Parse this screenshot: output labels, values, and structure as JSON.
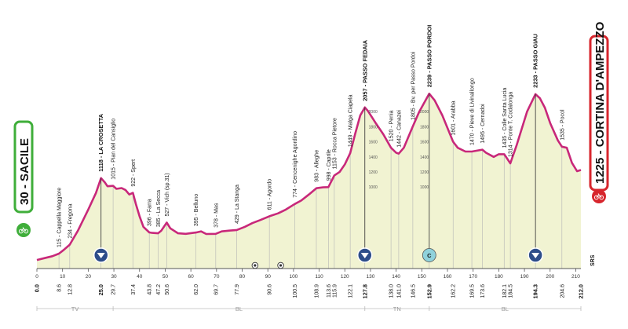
{
  "colors": {
    "profile_fill": "#f1f3d2",
    "profile_line": "#c8287a",
    "start_border": "#3fae3a",
    "finish_border": "#d7262d",
    "marker_kom": "#2d4d8a",
    "marker_sprint": "#8fd2dc",
    "grid": "#b5b5b5"
  },
  "start": {
    "altitude": "30",
    "name": "SACILE"
  },
  "finish": {
    "altitude": "1225",
    "name": "CORTINA D'AMPEZZO"
  },
  "chart_data": {
    "type": "area",
    "title": "",
    "xlabel": "",
    "ylabel": "",
    "xlim": [
      0,
      212
    ],
    "ylim": [
      0,
      3000
    ],
    "profile": [
      [
        0,
        30
      ],
      [
        3,
        55
      ],
      [
        6,
        80
      ],
      [
        8.6,
        115
      ],
      [
        10.5,
        165
      ],
      [
        12.8,
        234
      ],
      [
        16,
        420
      ],
      [
        20,
        700
      ],
      [
        23,
        920
      ],
      [
        25,
        1118
      ],
      [
        26.5,
        1060
      ],
      [
        27.5,
        1010
      ],
      [
        29.7,
        1015
      ],
      [
        31,
        975
      ],
      [
        33,
        985
      ],
      [
        34.5,
        960
      ],
      [
        36,
        900
      ],
      [
        37.4,
        922
      ],
      [
        38.5,
        780
      ],
      [
        40,
        610
      ],
      [
        41.5,
        470
      ],
      [
        43.8,
        396
      ],
      [
        45,
        390
      ],
      [
        47.2,
        385
      ],
      [
        48.5,
        420
      ],
      [
        50.6,
        527
      ],
      [
        52,
        450
      ],
      [
        55,
        385
      ],
      [
        58,
        378
      ],
      [
        62,
        395
      ],
      [
        64,
        410
      ],
      [
        66,
        375
      ],
      [
        69.7,
        378
      ],
      [
        72,
        410
      ],
      [
        75,
        420
      ],
      [
        77.9,
        429
      ],
      [
        81,
        470
      ],
      [
        84,
        520
      ],
      [
        87,
        560
      ],
      [
        90.6,
        611
      ],
      [
        94,
        650
      ],
      [
        97,
        700
      ],
      [
        100.5,
        774
      ],
      [
        103,
        820
      ],
      [
        106,
        900
      ],
      [
        108.9,
        983
      ],
      [
        111.5,
        995
      ],
      [
        113.6,
        998
      ],
      [
        115.9,
        1153
      ],
      [
        118,
        1200
      ],
      [
        120,
        1300
      ],
      [
        122.1,
        1449
      ],
      [
        124,
        1700
      ],
      [
        126,
        1950
      ],
      [
        127.8,
        2057
      ],
      [
        129,
        2010
      ],
      [
        132,
        1850
      ],
      [
        135,
        1700
      ],
      [
        138,
        1520
      ],
      [
        140,
        1455
      ],
      [
        141,
        1442
      ],
      [
        143,
        1520
      ],
      [
        146.5,
        1805
      ],
      [
        149,
        2000
      ],
      [
        152.9,
        2239
      ],
      [
        155,
        2150
      ],
      [
        158,
        1950
      ],
      [
        162.2,
        1601
      ],
      [
        164,
        1520
      ],
      [
        167,
        1470
      ],
      [
        169.5,
        1470
      ],
      [
        171,
        1480
      ],
      [
        173.6,
        1495
      ],
      [
        175,
        1455
      ],
      [
        178,
        1400
      ],
      [
        180,
        1435
      ],
      [
        182.1,
        1435
      ],
      [
        184.5,
        1314
      ],
      [
        187,
        1560
      ],
      [
        191,
        2000
      ],
      [
        194.3,
        2233
      ],
      [
        196,
        2180
      ],
      [
        198,
        2050
      ],
      [
        200,
        1850
      ],
      [
        203,
        1620
      ],
      [
        204.6,
        1535
      ],
      [
        206.5,
        1520
      ],
      [
        208.5,
        1320
      ],
      [
        210.5,
        1210
      ],
      [
        212,
        1225
      ]
    ],
    "waypoints": [
      {
        "km": 8.6,
        "alt": 115,
        "label": "115 - Cappella Maggiore",
        "bold": false
      },
      {
        "km": 12.8,
        "alt": 234,
        "label": "234 - Fregona",
        "bold": false
      },
      {
        "km": 25.0,
        "alt": 1118,
        "label": "1118 - LA CROSETTA",
        "bold": true
      },
      {
        "km": 29.7,
        "alt": 1015,
        "label": "1015 - Pian del Cansiglio",
        "bold": false
      },
      {
        "km": 37.4,
        "alt": 922,
        "label": "922 - Spert",
        "bold": false
      },
      {
        "km": 43.8,
        "alt": 396,
        "label": "396 - Farra",
        "bold": false
      },
      {
        "km": 47.2,
        "alt": 385,
        "label": "385 - La Secca",
        "bold": false
      },
      {
        "km": 50.6,
        "alt": 527,
        "label": "527 - Vich (sp.31)",
        "bold": false
      },
      {
        "km": 62.0,
        "alt": 395,
        "label": "395 - Belluno",
        "bold": false
      },
      {
        "km": 69.7,
        "alt": 378,
        "label": "378 - Mas",
        "bold": false
      },
      {
        "km": 77.9,
        "alt": 429,
        "label": "429 - La Stanga",
        "bold": false
      },
      {
        "km": 90.6,
        "alt": 611,
        "label": "611 - Agordo",
        "bold": false
      },
      {
        "km": 100.5,
        "alt": 774,
        "label": "774 - Cencenighe Agordino",
        "bold": false
      },
      {
        "km": 108.9,
        "alt": 983,
        "label": "983 - Alleghe",
        "bold": false
      },
      {
        "km": 113.6,
        "alt": 998,
        "label": "998 - Caprile",
        "bold": false
      },
      {
        "km": 115.9,
        "alt": 1153,
        "label": "1153 - Rocca Pietore",
        "bold": false
      },
      {
        "km": 122.1,
        "alt": 1449,
        "label": "1449 - Malga Ciapela",
        "bold": false
      },
      {
        "km": 127.8,
        "alt": 2057,
        "label": "2057 - PASSO FEDAIA",
        "bold": true
      },
      {
        "km": 138.0,
        "alt": 1520,
        "label": "1520 - Penia",
        "bold": false
      },
      {
        "km": 141.0,
        "alt": 1442,
        "label": "1442 - Canazei",
        "bold": false
      },
      {
        "km": 146.5,
        "alt": 1805,
        "label": "1805 - Bv. per Passo Pordoi",
        "bold": false
      },
      {
        "km": 152.9,
        "alt": 2239,
        "label": "2239 - PASSO PORDOI",
        "bold": true
      },
      {
        "km": 162.2,
        "alt": 1601,
        "label": "1601 - Arabba",
        "bold": false
      },
      {
        "km": 169.5,
        "alt": 1470,
        "label": "1470 - Pieve di Livinallongo",
        "bold": false
      },
      {
        "km": 173.6,
        "alt": 1495,
        "label": "1495 - Cernadoi",
        "bold": false
      },
      {
        "km": 182.1,
        "alt": 1435,
        "label": "1435 - Colle Santa Lucia",
        "bold": false
      },
      {
        "km": 184.5,
        "alt": 1314,
        "label": "1314 - Ponte T. Codalonga",
        "bold": false
      },
      {
        "km": 194.3,
        "alt": 2233,
        "label": "2233 - PASSO GIAU",
        "bold": true
      },
      {
        "km": 204.6,
        "alt": 1535,
        "label": "1535 - Pocol",
        "bold": false
      }
    ],
    "km_ticks": [
      0,
      10,
      20,
      30,
      40,
      50,
      60,
      70,
      80,
      90,
      100,
      110,
      120,
      130,
      140,
      150,
      160,
      170,
      180,
      190,
      200,
      210
    ],
    "km_tick_labels": [
      "0",
      "10",
      "20",
      "30",
      "40",
      "50",
      "60",
      "70",
      "80",
      "90",
      "100",
      "110",
      "120",
      "130",
      "140",
      "150",
      "160",
      "170",
      "180",
      "190",
      "200",
      "210"
    ],
    "km_values": [
      {
        "km": 0.0,
        "label": "0.0",
        "bold": true
      },
      {
        "km": 8.6,
        "label": "8.6",
        "bold": false
      },
      {
        "km": 12.8,
        "label": "12.8",
        "bold": false
      },
      {
        "km": 25.0,
        "label": "25.0",
        "bold": true
      },
      {
        "km": 29.7,
        "label": "29.7",
        "bold": false
      },
      {
        "km": 37.4,
        "label": "37.4",
        "bold": false
      },
      {
        "km": 43.8,
        "label": "43.8",
        "bold": false
      },
      {
        "km": 47.2,
        "label": "47.2",
        "bold": false
      },
      {
        "km": 50.6,
        "label": "50.6",
        "bold": false
      },
      {
        "km": 62.0,
        "label": "62.0",
        "bold": false
      },
      {
        "km": 69.7,
        "label": "69.7",
        "bold": false
      },
      {
        "km": 77.9,
        "label": "77.9",
        "bold": false
      },
      {
        "km": 90.6,
        "label": "90.6",
        "bold": false
      },
      {
        "km": 100.5,
        "label": "100.5",
        "bold": false
      },
      {
        "km": 108.9,
        "label": "108.9",
        "bold": false
      },
      {
        "km": 113.6,
        "label": "113.6",
        "bold": false
      },
      {
        "km": 115.9,
        "label": "115.9",
        "bold": false
      },
      {
        "km": 122.1,
        "label": "122.1",
        "bold": false
      },
      {
        "km": 127.8,
        "label": "127.8",
        "bold": true
      },
      {
        "km": 138.0,
        "label": "138.0",
        "bold": false
      },
      {
        "km": 141.0,
        "label": "141.0",
        "bold": false
      },
      {
        "km": 146.5,
        "label": "146.5",
        "bold": false
      },
      {
        "km": 152.9,
        "label": "152.9",
        "bold": true
      },
      {
        "km": 162.2,
        "label": "162.2",
        "bold": false
      },
      {
        "km": 169.5,
        "label": "169.5",
        "bold": false
      },
      {
        "km": 173.6,
        "label": "173.6",
        "bold": false
      },
      {
        "km": 182.1,
        "label": "182.1",
        "bold": false
      },
      {
        "km": 184.5,
        "label": "184.5",
        "bold": false
      },
      {
        "km": 194.3,
        "label": "194.3",
        "bold": true
      },
      {
        "km": 204.6,
        "label": "204.6",
        "bold": false
      },
      {
        "km": 212.0,
        "label": "212.0",
        "bold": true
      }
    ],
    "altitude_labels": [
      {
        "alt": 1000,
        "label": "1000"
      },
      {
        "alt": 1200,
        "label": "1200"
      },
      {
        "alt": 1400,
        "label": "1400"
      },
      {
        "alt": 1600,
        "label": "1600"
      },
      {
        "alt": 1800,
        "label": "1800"
      },
      {
        "alt": 2000,
        "label": "2000"
      }
    ],
    "kom_markers": [
      25.0,
      127.8,
      194.3
    ],
    "sprint_markers": [
      {
        "km": 152.9,
        "label": "C"
      }
    ],
    "feed_markers": [
      85,
      95
    ],
    "provinces": [
      {
        "label": "TV",
        "from": 0,
        "to": 29.7
      },
      {
        "label": "BL",
        "from": 29.7,
        "to": 127.8
      },
      {
        "label": "TN",
        "from": 127.8,
        "to": 152.9
      },
      {
        "label": "BL",
        "from": 152.9,
        "to": 212.0
      }
    ]
  },
  "logo_text": "SRS"
}
